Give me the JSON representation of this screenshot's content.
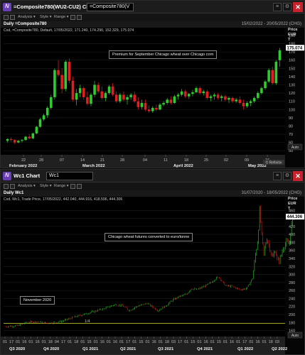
{
  "colors": {
    "up": "#2ecc2e",
    "down": "#e02020",
    "grid": "#1d1d1d",
    "accent": "#6a3fb5",
    "close": "#c8232c",
    "hline": "#cbd62a",
    "dateband": "#202020"
  },
  "chart1": {
    "window_title": "=Composite780(WU2-CU2) Chart",
    "symbol_input": "=Composite780(V",
    "toolbar": {
      "analysis": "Analysis",
      "style": "Style",
      "range": "Range"
    },
    "info_left": "Daily =Composite780",
    "info_right": "15/02/2022 - 20/05/2022 (CHG)",
    "ohlc": "Cxd, =Composite780, Default, 17/05/2022, 171.240, 174.290, 152.329, 175.074",
    "annotation": "Premium for September Chicago wheat over Chicago corn",
    "price_header": "Price",
    "price_unit1": "EUR",
    "price_unit2": "T",
    "auto_label": "Auto",
    "last_price": "175.074",
    "source_label": "© Refinitiv",
    "yaxis": {
      "min": 45,
      "max": 196,
      "ticks": [
        190,
        180,
        170,
        160,
        150,
        140,
        130,
        120,
        110,
        100,
        90,
        80,
        70,
        60,
        50
      ]
    },
    "date_ticks": [
      "22",
      "28",
      "07",
      "14",
      "21",
      "28",
      "04",
      "11",
      "18",
      "25",
      "02",
      "09",
      "16"
    ],
    "periods": [
      "February 2022",
      "March 2022",
      "April 2022",
      "May 2022"
    ],
    "candles": [
      [
        62,
        65,
        60,
        64
      ],
      [
        64,
        66,
        61,
        63
      ],
      [
        63,
        64,
        58,
        60
      ],
      [
        60,
        63,
        59,
        62
      ],
      [
        62,
        64,
        60,
        63
      ],
      [
        63,
        68,
        62,
        67
      ],
      [
        67,
        70,
        64,
        65
      ],
      [
        65,
        72,
        64,
        71
      ],
      [
        71,
        80,
        70,
        79
      ],
      [
        79,
        90,
        78,
        88
      ],
      [
        88,
        95,
        86,
        93
      ],
      [
        93,
        104,
        90,
        102
      ],
      [
        102,
        118,
        100,
        115
      ],
      [
        115,
        150,
        112,
        148
      ],
      [
        148,
        160,
        140,
        142
      ],
      [
        142,
        150,
        120,
        125
      ],
      [
        125,
        160,
        122,
        158
      ],
      [
        158,
        162,
        132,
        135
      ],
      [
        135,
        140,
        110,
        112
      ],
      [
        112,
        125,
        105,
        120
      ],
      [
        120,
        130,
        115,
        126
      ],
      [
        126,
        128,
        112,
        115
      ],
      [
        115,
        122,
        105,
        107
      ],
      [
        107,
        120,
        104,
        118
      ],
      [
        118,
        135,
        115,
        130
      ],
      [
        130,
        133,
        120,
        122
      ],
      [
        122,
        128,
        112,
        114
      ],
      [
        114,
        122,
        110,
        120
      ],
      [
        120,
        130,
        118,
        128
      ],
      [
        128,
        132,
        116,
        118
      ],
      [
        118,
        122,
        108,
        110
      ],
      [
        110,
        120,
        108,
        118
      ],
      [
        118,
        122,
        110,
        112
      ],
      [
        112,
        118,
        106,
        115
      ],
      [
        115,
        120,
        112,
        118
      ],
      [
        118,
        122,
        108,
        110
      ],
      [
        110,
        115,
        100,
        103
      ],
      [
        103,
        112,
        100,
        108
      ],
      [
        108,
        112,
        98,
        100
      ],
      [
        100,
        105,
        96,
        98
      ],
      [
        98,
        104,
        96,
        102
      ],
      [
        102,
        106,
        98,
        100
      ],
      [
        100,
        108,
        99,
        106
      ],
      [
        106,
        110,
        104,
        108
      ],
      [
        108,
        114,
        106,
        112
      ],
      [
        112,
        116,
        106,
        108
      ],
      [
        108,
        118,
        107,
        116
      ],
      [
        116,
        120,
        112,
        118
      ],
      [
        118,
        125,
        116,
        122
      ],
      [
        122,
        124,
        114,
        116
      ],
      [
        116,
        120,
        113,
        119
      ],
      [
        119,
        124,
        116,
        121
      ],
      [
        121,
        128,
        120,
        126
      ],
      [
        126,
        128,
        118,
        120
      ],
      [
        120,
        124,
        117,
        122
      ],
      [
        122,
        124,
        112,
        114
      ],
      [
        114,
        118,
        110,
        116
      ],
      [
        116,
        120,
        112,
        118
      ],
      [
        118,
        120,
        112,
        114
      ],
      [
        114,
        118,
        110,
        116
      ],
      [
        116,
        118,
        110,
        112
      ],
      [
        112,
        116,
        108,
        114
      ],
      [
        114,
        116,
        108,
        110
      ],
      [
        110,
        114,
        108,
        112
      ],
      [
        112,
        116,
        106,
        108
      ],
      [
        108,
        112,
        100,
        104
      ],
      [
        104,
        110,
        102,
        108
      ],
      [
        108,
        112,
        104,
        110
      ],
      [
        110,
        116,
        108,
        114
      ],
      [
        114,
        122,
        112,
        120
      ],
      [
        120,
        128,
        118,
        126
      ],
      [
        126,
        136,
        124,
        134
      ],
      [
        134,
        150,
        132,
        148
      ],
      [
        148,
        152,
        130,
        132
      ],
      [
        132,
        160,
        130,
        158
      ],
      [
        160,
        175,
        152,
        172
      ]
    ]
  },
  "chart2": {
    "window_title": "Wc1 Chart",
    "symbol_input": "Wc1",
    "toolbar": {
      "analysis": "Analysis",
      "style": "Style",
      "range": "Range"
    },
    "info_left": "Daily Wc1",
    "info_right": "31/07/2020 - 18/05/2022 (CHG)",
    "ohlc": "Cxd, Wc1, Trade Price, 17/05/2022, 442.040, 444.916, 418.596, 444.306",
    "annotation": "Chicago wheat futures converted to euro/tonne",
    "annotation2": "November 2020",
    "price_header": "Price",
    "price_unit1": "EUR",
    "price_unit2": "T",
    "auto_label": "Auto",
    "last_price": "444.306",
    "hline_label": "1/4",
    "hline_value": 178,
    "yaxis": {
      "min": 145,
      "max": 480,
      "ticks": [
        460,
        440,
        420,
        400,
        380,
        360,
        340,
        320,
        300,
        280,
        260,
        240,
        220,
        200,
        180,
        160
      ]
    },
    "date_ticks": [
      "01",
      "17",
      "01",
      "16",
      "01",
      "16",
      "01",
      "18",
      "04",
      "17",
      "01",
      "18",
      "01",
      "15",
      "01",
      "16",
      "01",
      "16",
      "01",
      "17",
      "01",
      "15",
      "01",
      "16",
      "01",
      "18",
      "03",
      "17",
      "01",
      "15",
      "01",
      "16",
      "01",
      "15",
      "01",
      "16",
      "01",
      "17",
      "01",
      "16",
      "01",
      "18",
      "03"
    ],
    "periods": [
      "Q3 2020",
      "Q4 2020",
      "Q1 2021",
      "Q2 2021",
      "Q3 2021",
      "Q4 2021",
      "Q1 2022",
      "Q2 2022"
    ],
    "keypoints": [
      [
        0,
        170
      ],
      [
        18,
        172
      ],
      [
        30,
        180
      ],
      [
        45,
        182
      ],
      [
        60,
        178
      ],
      [
        80,
        183
      ],
      [
        100,
        195
      ],
      [
        120,
        205
      ],
      [
        140,
        215
      ],
      [
        155,
        225
      ],
      [
        165,
        222
      ],
      [
        175,
        210
      ],
      [
        185,
        220
      ],
      [
        200,
        228
      ],
      [
        215,
        210
      ],
      [
        225,
        220
      ],
      [
        235,
        235
      ],
      [
        245,
        245
      ],
      [
        255,
        250
      ],
      [
        262,
        265
      ],
      [
        270,
        262
      ],
      [
        280,
        270
      ],
      [
        290,
        280
      ],
      [
        300,
        295
      ],
      [
        310,
        272
      ],
      [
        320,
        270
      ],
      [
        330,
        262
      ],
      [
        340,
        265
      ],
      [
        348,
        290
      ],
      [
        352,
        345
      ],
      [
        356,
        390
      ],
      [
        358,
        465
      ],
      [
        361,
        400
      ],
      [
        364,
        350
      ],
      [
        368,
        390
      ],
      [
        372,
        370
      ],
      [
        376,
        340
      ],
      [
        380,
        360
      ],
      [
        384,
        330
      ],
      [
        388,
        345
      ],
      [
        392,
        370
      ],
      [
        396,
        380
      ],
      [
        400,
        375
      ],
      [
        404,
        440
      ],
      [
        406,
        444
      ]
    ]
  }
}
